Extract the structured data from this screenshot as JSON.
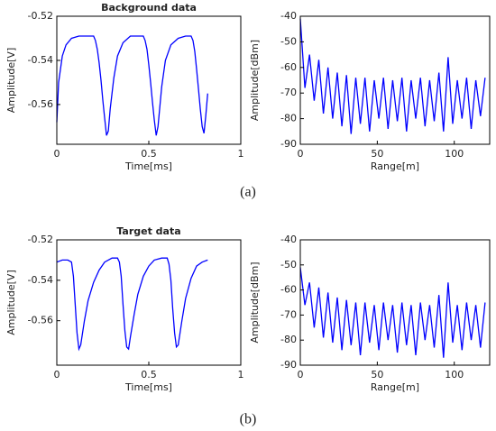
{
  "chart_data": [
    {
      "type": "line",
      "title": "Background data",
      "xlabel": "Time[ms]",
      "ylabel": "Amplitude[V]",
      "color": "#0000ff",
      "xlim": [
        0,
        1
      ],
      "xticks": [
        0,
        0.5,
        1
      ],
      "ylim": [
        -0.578,
        -0.52
      ],
      "yticks": [
        -0.52,
        -0.54,
        -0.56
      ],
      "x": [
        0,
        0.01,
        0.03,
        0.05,
        0.08,
        0.12,
        0.16,
        0.2,
        0.21,
        0.22,
        0.23,
        0.24,
        0.25,
        0.26,
        0.27,
        0.28,
        0.29,
        0.31,
        0.33,
        0.36,
        0.4,
        0.44,
        0.47,
        0.48,
        0.49,
        0.5,
        0.51,
        0.52,
        0.53,
        0.54,
        0.55,
        0.57,
        0.59,
        0.62,
        0.66,
        0.7,
        0.73,
        0.74,
        0.75,
        0.76,
        0.77,
        0.78,
        0.79,
        0.8,
        0.81,
        0.82
      ],
      "values": [
        -0.568,
        -0.55,
        -0.538,
        -0.533,
        -0.53,
        -0.529,
        -0.529,
        -0.529,
        -0.531,
        -0.535,
        -0.541,
        -0.549,
        -0.558,
        -0.566,
        -0.574,
        -0.572,
        -0.562,
        -0.548,
        -0.538,
        -0.532,
        -0.529,
        -0.529,
        -0.529,
        -0.531,
        -0.535,
        -0.542,
        -0.55,
        -0.559,
        -0.567,
        -0.574,
        -0.57,
        -0.552,
        -0.54,
        -0.533,
        -0.53,
        -0.529,
        -0.529,
        -0.531,
        -0.536,
        -0.544,
        -0.553,
        -0.562,
        -0.57,
        -0.573,
        -0.565,
        -0.555
      ]
    },
    {
      "type": "line",
      "xlabel": "Range[m]",
      "ylabel": "Amplitude[dBm]",
      "color": "#0000ff",
      "xlim": [
        0,
        123
      ],
      "xticks": [
        0,
        50,
        100
      ],
      "ylim": [
        -90,
        -40
      ],
      "yticks": [
        -40,
        -50,
        -60,
        -70,
        -80,
        -90
      ],
      "x": [
        0,
        3,
        6,
        9,
        12,
        15,
        18,
        21,
        24,
        27,
        30,
        33,
        36,
        39,
        42,
        45,
        48,
        51,
        54,
        57,
        60,
        63,
        66,
        69,
        72,
        75,
        78,
        81,
        84,
        87,
        90,
        93,
        96,
        99,
        102,
        105,
        108,
        111,
        114,
        117,
        120
      ],
      "values": [
        -41,
        -68,
        -55,
        -73,
        -57,
        -78,
        -60,
        -80,
        -62,
        -83,
        -63,
        -86,
        -64,
        -82,
        -64,
        -85,
        -65,
        -80,
        -64,
        -84,
        -65,
        -81,
        -64,
        -85,
        -65,
        -80,
        -64,
        -83,
        -65,
        -81,
        -62,
        -85,
        -56,
        -82,
        -65,
        -80,
        -64,
        -84,
        -65,
        -79,
        -64
      ]
    },
    {
      "type": "line",
      "title": "Target data",
      "xlabel": "Time[ms]",
      "ylabel": "Amplitude[V]",
      "color": "#0000ff",
      "xlim": [
        0,
        1
      ],
      "xticks": [
        0,
        0.5,
        1
      ],
      "ylim": [
        -0.582,
        -0.52
      ],
      "yticks": [
        -0.52,
        -0.54,
        -0.56
      ],
      "x": [
        0,
        0.03,
        0.06,
        0.08,
        0.09,
        0.1,
        0.11,
        0.12,
        0.13,
        0.15,
        0.17,
        0.2,
        0.23,
        0.26,
        0.3,
        0.33,
        0.34,
        0.35,
        0.36,
        0.37,
        0.38,
        0.39,
        0.4,
        0.42,
        0.44,
        0.47,
        0.5,
        0.53,
        0.57,
        0.6,
        0.61,
        0.62,
        0.63,
        0.64,
        0.65,
        0.66,
        0.68,
        0.7,
        0.73,
        0.76,
        0.79,
        0.82
      ],
      "values": [
        -0.531,
        -0.53,
        -0.53,
        -0.531,
        -0.538,
        -0.552,
        -0.566,
        -0.574,
        -0.572,
        -0.56,
        -0.55,
        -0.541,
        -0.535,
        -0.531,
        -0.529,
        -0.529,
        -0.531,
        -0.538,
        -0.552,
        -0.565,
        -0.573,
        -0.574,
        -0.568,
        -0.557,
        -0.547,
        -0.538,
        -0.533,
        -0.53,
        -0.529,
        -0.529,
        -0.532,
        -0.54,
        -0.554,
        -0.566,
        -0.573,
        -0.572,
        -0.56,
        -0.549,
        -0.539,
        -0.533,
        -0.531,
        -0.53
      ]
    },
    {
      "type": "line",
      "xlabel": "Range[m]",
      "ylabel": "Amplitude[dBm]",
      "color": "#0000ff",
      "xlim": [
        0,
        123
      ],
      "xticks": [
        0,
        50,
        100
      ],
      "ylim": [
        -90,
        -40
      ],
      "yticks": [
        -40,
        -50,
        -60,
        -70,
        -80,
        -90
      ],
      "x": [
        0,
        3,
        6,
        9,
        12,
        15,
        18,
        21,
        24,
        27,
        30,
        33,
        36,
        39,
        42,
        45,
        48,
        51,
        54,
        57,
        60,
        63,
        66,
        69,
        72,
        75,
        78,
        81,
        84,
        87,
        90,
        93,
        96,
        99,
        102,
        105,
        108,
        111,
        114,
        117,
        120
      ],
      "values": [
        -51,
        -66,
        -57,
        -75,
        -59,
        -79,
        -61,
        -81,
        -63,
        -84,
        -64,
        -82,
        -65,
        -86,
        -65,
        -81,
        -66,
        -84,
        -65,
        -80,
        -66,
        -85,
        -65,
        -82,
        -66,
        -86,
        -65,
        -80,
        -66,
        -83,
        -62,
        -87,
        -57,
        -81,
        -66,
        -84,
        -65,
        -80,
        -66,
        -83,
        -65
      ]
    }
  ],
  "panel_labels": [
    "(a)",
    "(b)"
  ]
}
